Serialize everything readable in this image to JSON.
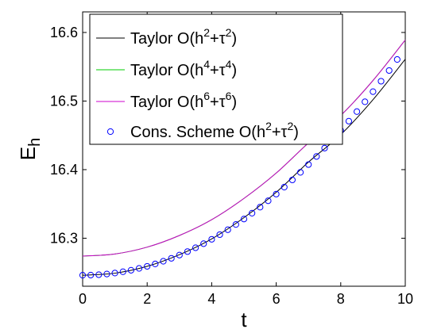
{
  "chart_data": {
    "type": "line",
    "xlabel": "t",
    "ylabel": "E",
    "ylabel_subscript": "h",
    "xlim": [
      0,
      10
    ],
    "ylim": [
      16.23,
      16.63
    ],
    "xticks": [
      0,
      2,
      4,
      6,
      8,
      10
    ],
    "yticks": [
      16.3,
      16.4,
      16.5,
      16.6
    ],
    "xtick_labels": [
      "0",
      "2",
      "4",
      "6",
      "8",
      "10"
    ],
    "ytick_labels": [
      "16.3",
      "16.4",
      "16.5",
      "16.6"
    ],
    "grid": false,
    "legend_position": "top",
    "series": [
      {
        "name": "Taylor O(h2+τ2)",
        "legend": {
          "base": "Taylor O(h",
          "p1": "2",
          "mid": "+τ",
          "p2": "2",
          "end": ")"
        },
        "style": "line",
        "color": "#000000",
        "x": [
          0,
          1,
          2,
          3,
          4,
          5,
          6,
          7,
          8,
          9,
          10
        ],
        "y": [
          16.246,
          16.249,
          16.259,
          16.276,
          16.299,
          16.33,
          16.367,
          16.411,
          16.451,
          16.502,
          16.561
        ]
      },
      {
        "name": "Taylor O(h4+τ4)",
        "legend": {
          "base": "Taylor O(h",
          "p1": "4",
          "mid": "+τ",
          "p2": "4",
          "end": ")"
        },
        "style": "line",
        "color": "#00cc00",
        "x": [
          0,
          1,
          2,
          3,
          4,
          5,
          6,
          7,
          8,
          9,
          10
        ],
        "y": [
          16.274,
          16.277,
          16.287,
          16.304,
          16.327,
          16.358,
          16.395,
          16.439,
          16.479,
          16.53,
          16.589
        ]
      },
      {
        "name": "Taylor O(h6+τ6)",
        "legend": {
          "base": "Taylor O(h",
          "p1": "6",
          "mid": "+τ",
          "p2": "6",
          "end": ")"
        },
        "style": "line",
        "color": "#cc00cc",
        "x": [
          0,
          1,
          2,
          3,
          4,
          5,
          6,
          7,
          8,
          9,
          10
        ],
        "y": [
          16.274,
          16.277,
          16.287,
          16.304,
          16.327,
          16.358,
          16.395,
          16.439,
          16.479,
          16.53,
          16.589
        ]
      },
      {
        "name": "Cons. Scheme O(h2+τ2)",
        "legend": {
          "base": "Cons. Scheme O(h",
          "p1": "2",
          "mid": "+τ",
          "p2": "2",
          "end": ")"
        },
        "style": "markers",
        "marker": "circle",
        "color": "#0000ff",
        "x": [
          0,
          0.25,
          0.5,
          0.75,
          1,
          1.25,
          1.5,
          1.75,
          2,
          2.25,
          2.5,
          2.75,
          3,
          3.25,
          3.5,
          3.75,
          4,
          4.25,
          4.5,
          4.75,
          5,
          5.25,
          5.5,
          5.75,
          6,
          6.25,
          6.5,
          6.75,
          7,
          7.25,
          7.5,
          7.75,
          8,
          8.25,
          8.5,
          8.75,
          9,
          9.25,
          9.5,
          9.75
        ],
        "y": [
          16.246,
          16.2462,
          16.2468,
          16.2478,
          16.2492,
          16.2511,
          16.2533,
          16.256,
          16.259,
          16.2625,
          16.2664,
          16.2707,
          16.2754,
          16.2805,
          16.2861,
          16.292,
          16.2984,
          16.3052,
          16.3124,
          16.32,
          16.328,
          16.3365,
          16.3453,
          16.3546,
          16.3643,
          16.3745,
          16.385,
          16.396,
          16.4074,
          16.4192,
          16.4314,
          16.4441,
          16.4572,
          16.4707,
          16.4846,
          16.4989,
          16.5137,
          16.5289,
          16.5445,
          16.5606
        ]
      }
    ]
  }
}
